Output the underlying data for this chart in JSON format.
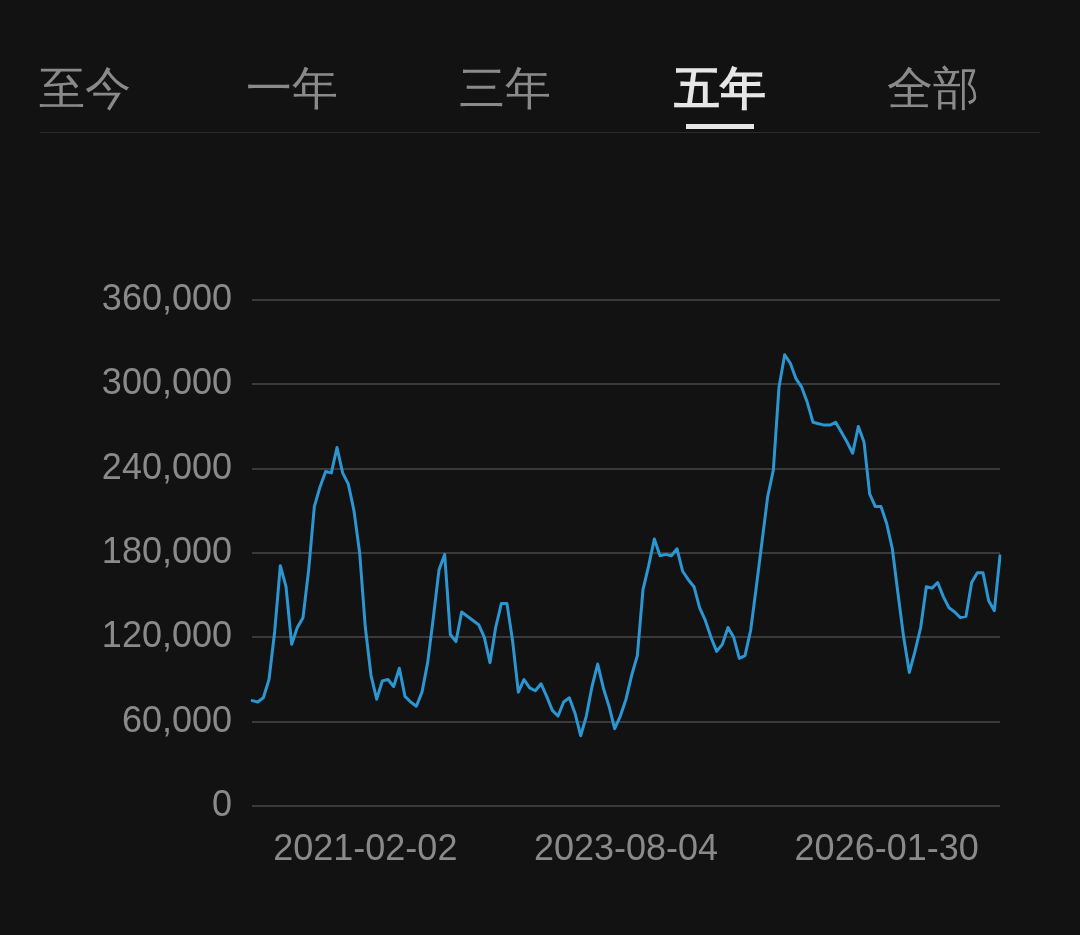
{
  "chart_data": {
    "type": "line",
    "annotations": [
      "至今",
      "一年",
      "三年",
      "五年",
      "全部"
    ],
    "categories": [
      null,
      null,
      null,
      null,
      null,
      null,
      null,
      null,
      null,
      null,
      null,
      null,
      null,
      null,
      null,
      null,
      null,
      null,
      null,
      null,
      "2021-02-02",
      null,
      null,
      null,
      null,
      null,
      null,
      null,
      null,
      null,
      null,
      null,
      null,
      null,
      null,
      null,
      null,
      null,
      null,
      null,
      null,
      null,
      null,
      null,
      null,
      null,
      null,
      null,
      null,
      null,
      null,
      null,
      null,
      null,
      null,
      null,
      null,
      null,
      null,
      null,
      null,
      null,
      null,
      null,
      null,
      null,
      "2023-08-04",
      null,
      null,
      null,
      null,
      null,
      null,
      null,
      null,
      null,
      null,
      null,
      null,
      null,
      null,
      null,
      null,
      null,
      null,
      null,
      null,
      null,
      null,
      null,
      null,
      null,
      null,
      null,
      null,
      null,
      null,
      null,
      null,
      null,
      null,
      null,
      null,
      null,
      null,
      null,
      null,
      null,
      null,
      null,
      null,
      null,
      "2026-01-30",
      null,
      null,
      null,
      null,
      null,
      null,
      null,
      null,
      null,
      null,
      null,
      null,
      null,
      null,
      null,
      null,
      null,
      null,
      null,
      null
    ],
    "series": [
      {
        "color": "#2b96d2",
        "values": [
          75000,
          74000,
          77000,
          90000,
          124000,
          171000,
          156000,
          115000,
          127000,
          134000,
          168000,
          213000,
          227000,
          238000,
          237000,
          255000,
          237000,
          229000,
          210000,
          180000,
          127000,
          93000,
          76000,
          89000,
          90000,
          85000,
          98000,
          78000,
          74000,
          71000,
          81000,
          102000,
          134000,
          168000,
          179000,
          122000,
          117000,
          138000,
          135000,
          132000,
          129000,
          120000,
          102000,
          127000,
          144000,
          144000,
          117000,
          81000,
          90000,
          84000,
          82000,
          87000,
          78000,
          68000,
          64000,
          74000,
          77000,
          66000,
          50000,
          64000,
          85000,
          101000,
          84000,
          71000,
          55000,
          64000,
          76000,
          93000,
          107000,
          154000,
          171000,
          190000,
          178000,
          179000,
          178000,
          183000,
          167000,
          161000,
          156000,
          141000,
          132000,
          120000,
          110000,
          115000,
          127000,
          120000,
          105000,
          107000,
          125000,
          156000,
          188000,
          220000,
          239000,
          298000,
          321000,
          315000,
          304000,
          298000,
          287000,
          273000,
          272000,
          271000,
          271000,
          273000,
          266000,
          259000,
          251000,
          270000,
          259000,
          222000,
          213000,
          213000,
          201000,
          183000,
          151000,
          120000,
          95000,
          110000,
          127000,
          156000,
          155000,
          159000,
          149000,
          141000,
          138000,
          134000,
          135000,
          159000,
          166000,
          166000,
          146000,
          139000,
          178000
        ]
      }
    ],
    "ylim": [
      0,
      360000
    ],
    "yticks": [
      0,
      {
        "value": 60000,
        "label": "60,000"
      },
      {
        "value": 120000,
        "label": "120,000"
      },
      {
        "value": 180000,
        "label": "180,000"
      },
      {
        "value": 240000,
        "label": "240,000"
      },
      {
        "value": 300000,
        "label": "300,000"
      },
      {
        "value": 360000,
        "label": "360,000"
      }
    ],
    "grid": "y",
    "legend": false,
    "marker": "none",
    "line_style": "solid"
  }
}
